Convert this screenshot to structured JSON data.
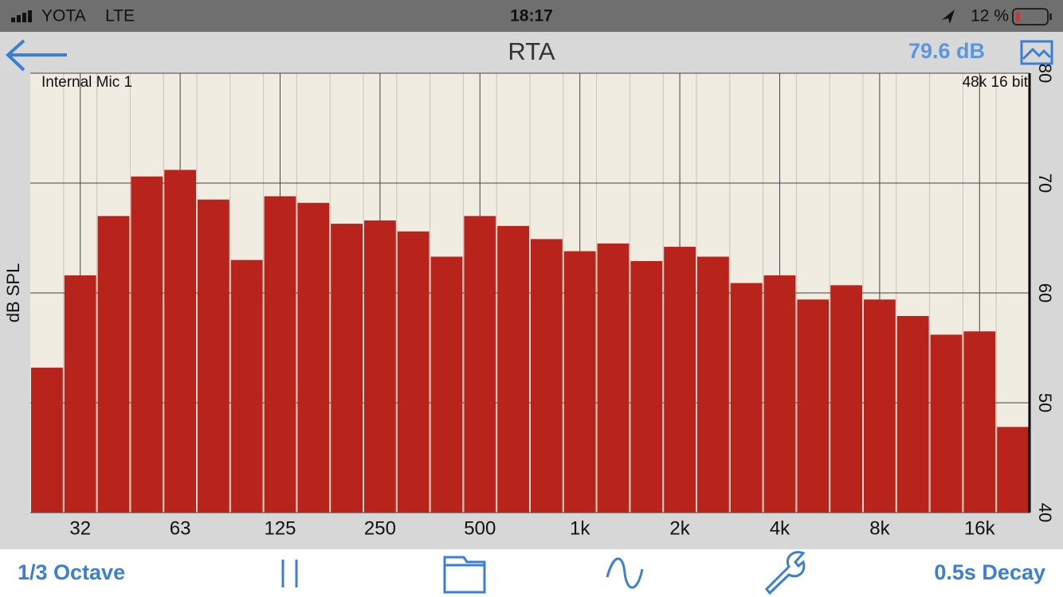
{
  "status": {
    "carrier": "YOTA",
    "network": "LTE",
    "time": "18:17",
    "battery": "12 %"
  },
  "nav": {
    "title": "RTA",
    "level": "79.6 dB"
  },
  "chart_data": {
    "type": "bar",
    "ylabel": "dB SPL",
    "input": "Internal Mic 1",
    "format": "48k 16 bit",
    "categories": [
      null,
      "32",
      null,
      null,
      "63",
      null,
      null,
      "125",
      null,
      null,
      "250",
      null,
      null,
      "500",
      null,
      null,
      "1k",
      null,
      null,
      "2k",
      null,
      null,
      "4k",
      null,
      null,
      "8k",
      null,
      null,
      "16k",
      null
    ],
    "values": [
      53.2,
      61.6,
      67.0,
      70.6,
      71.2,
      68.5,
      63.0,
      68.8,
      68.2,
      66.3,
      66.6,
      65.6,
      63.3,
      67.0,
      66.1,
      64.9,
      63.8,
      64.5,
      62.9,
      64.2,
      63.3,
      60.9,
      61.6,
      59.4,
      60.7,
      59.4,
      57.9,
      56.2,
      56.5,
      47.8
    ],
    "color": "#b8241c",
    "ylim": [
      40,
      80
    ],
    "yticks": [
      40,
      50,
      60,
      70,
      80
    ],
    "grid": true
  },
  "toolbar": {
    "bandwidth": "1/3 Octave",
    "decay": "0.5s Decay"
  }
}
